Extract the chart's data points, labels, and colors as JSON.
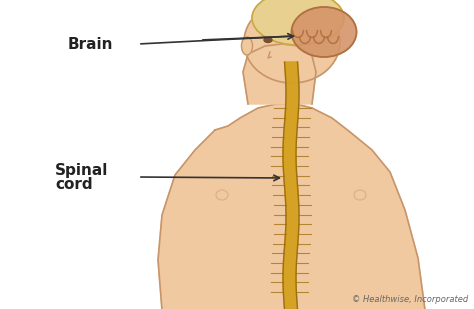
{
  "bg_color": "#ffffff",
  "skin_color": "#f0c9a0",
  "skin_outline_color": "#c8956a",
  "brain_color": "#d4956a",
  "brain_outline_color": "#b07040",
  "spinal_color": "#d4a020",
  "spinal_outline_color": "#a07010",
  "hair_color": "#e8d090",
  "hair_outline_color": "#c8a840",
  "label_color": "#222222",
  "annotation_color": "#333333",
  "copyright_color": "#666666",
  "copyright_text": "© Healthwise, Incorporated",
  "label_brain": "Brain",
  "label_spinal_line1": "Spinal",
  "label_spinal_line2": "cord",
  "figsize": [
    4.74,
    3.09
  ],
  "dpi": 100
}
